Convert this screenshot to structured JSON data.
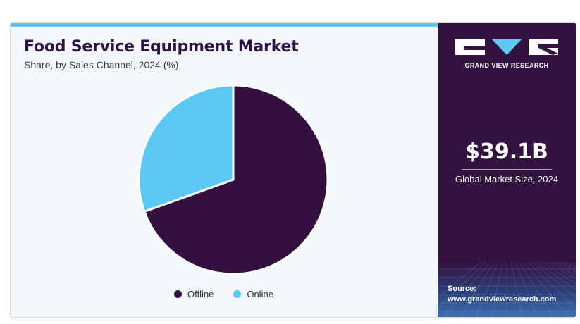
{
  "chart_data": {
    "type": "pie",
    "title": "Food Service Equipment Market",
    "subtitle": "Share, by Sales Channel, 2024 (%)",
    "categories": [
      "Offline",
      "Online"
    ],
    "values": [
      69.5,
      30.5
    ],
    "colors": [
      "#33103f",
      "#5bc9f3"
    ],
    "legend_position": "bottom"
  },
  "side_panel": {
    "brand": "GRAND VIEW RESEARCH",
    "market_size": "$39.1B",
    "market_size_label": "Global Market Size, 2024",
    "source_label": "Source:",
    "source_url": "www.grandviewresearch.com",
    "logo_icon": "gvr-logo-icon"
  }
}
